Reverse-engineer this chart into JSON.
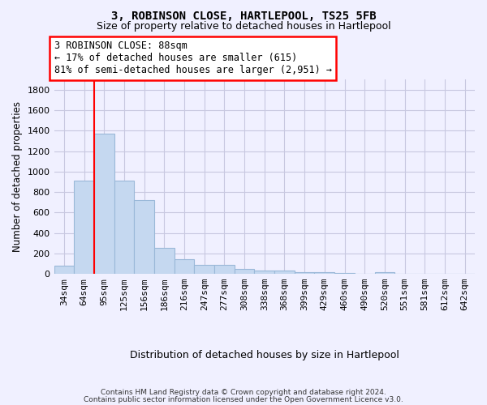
{
  "title": "3, ROBINSON CLOSE, HARTLEPOOL, TS25 5FB",
  "subtitle": "Size of property relative to detached houses in Hartlepool",
  "xlabel": "Distribution of detached houses by size in Hartlepool",
  "ylabel": "Number of detached properties",
  "categories": [
    "34sqm",
    "64sqm",
    "95sqm",
    "125sqm",
    "156sqm",
    "186sqm",
    "216sqm",
    "247sqm",
    "277sqm",
    "308sqm",
    "338sqm",
    "368sqm",
    "399sqm",
    "429sqm",
    "460sqm",
    "490sqm",
    "520sqm",
    "551sqm",
    "581sqm",
    "612sqm",
    "642sqm"
  ],
  "values": [
    80,
    910,
    1370,
    910,
    720,
    250,
    140,
    85,
    85,
    50,
    35,
    30,
    20,
    15,
    10,
    0,
    20,
    0,
    0,
    0,
    0
  ],
  "bar_color": "#c5d8f0",
  "bar_edge_color": "#9ab8d8",
  "vline_x_index": 1.5,
  "vline_color": "red",
  "annotation_text": "3 ROBINSON CLOSE: 88sqm\n← 17% of detached houses are smaller (615)\n81% of semi-detached houses are larger (2,951) →",
  "annotation_box_color": "white",
  "annotation_box_edge_color": "red",
  "ylim": [
    0,
    1900
  ],
  "yticks": [
    0,
    200,
    400,
    600,
    800,
    1000,
    1200,
    1400,
    1600,
    1800
  ],
  "footer1": "Contains HM Land Registry data © Crown copyright and database right 2024.",
  "footer2": "Contains public sector information licensed under the Open Government Licence v3.0.",
  "bg_color": "#f0f0ff",
  "grid_color": "#c8c8e0"
}
